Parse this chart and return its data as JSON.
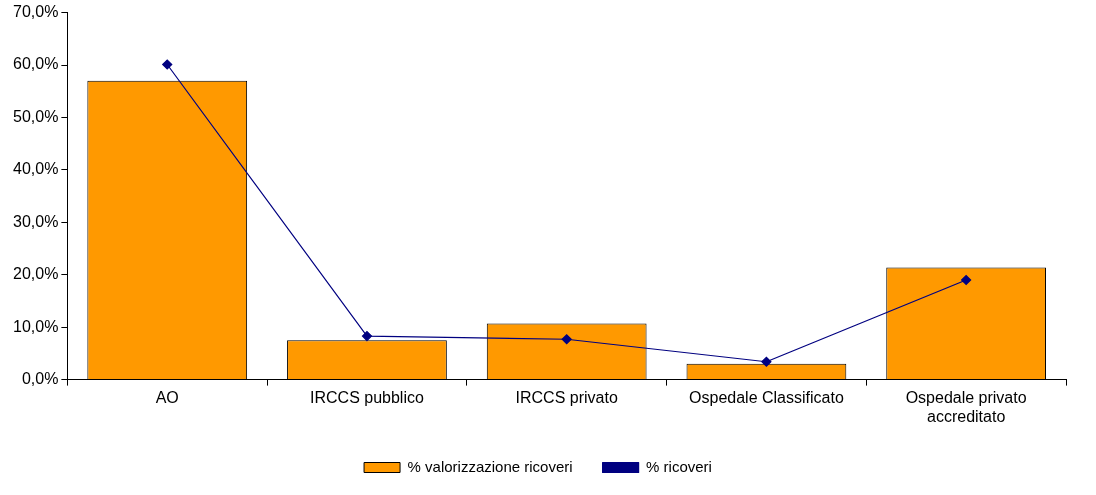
{
  "chart_data": {
    "type": "bar",
    "categories": [
      "AO",
      "IRCCS pubblico",
      "IRCCS privato",
      "Ospedale Classificato",
      "Ospedale privato accreditato"
    ],
    "series": [
      {
        "name": "% valorizzazione ricoveri",
        "color": "#ff9900",
        "values": [
          57.0,
          7.5,
          10.7,
          3.0,
          21.4
        ]
      },
      {
        "name": "% ricoveri",
        "type": "line",
        "color": "#000080",
        "values": [
          60.1,
          8.3,
          7.7,
          3.4,
          19.0
        ],
        "marker": "diamond",
        "line_style": "solid"
      }
    ],
    "ylim": [
      0,
      70
    ],
    "yticks": [
      {
        "value": 0,
        "label": "0,0%"
      },
      {
        "value": 10,
        "label": "10,0%"
      },
      {
        "value": 20,
        "label": "20,0%"
      },
      {
        "value": 30,
        "label": "30,0%"
      },
      {
        "value": 40,
        "label": "40,0%"
      },
      {
        "value": 50,
        "label": "50,0%"
      },
      {
        "value": 60,
        "label": "60,0%"
      },
      {
        "value": 70,
        "label": "70,0%"
      }
    ],
    "grid": false,
    "legend": "bottom"
  }
}
